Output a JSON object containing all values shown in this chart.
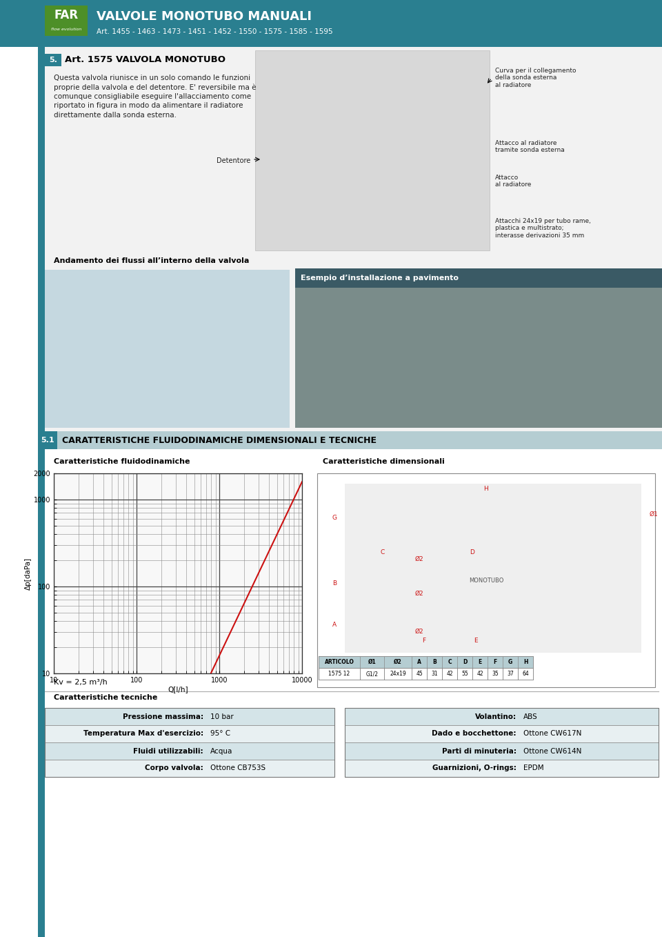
{
  "header_bg": "#2a7f90",
  "header_title": "VALVOLE MONOTUBO MANUALI",
  "header_subtitle": "Art. 1455 - 1463 - 1473 - 1451 - 1452 - 1550 - 1575 - 1585 - 1595",
  "section5_title": "Art. 1575 VALVOLA MONOTUBO",
  "body_text": "Questa valvola riunisce in un solo comando le funzioni\nproprie della valvola e del detentore. E' reversibile ma è\ncomunque consigliabile eseguire l'allacciamento come\nriportato in figura in modo da alimentare il radiatore\ndirettamente dalla sonda esterna.",
  "label_detentore": "Detentore",
  "label_curva": "Curva per il collegamento\ndella sonda esterna\nal radiatore",
  "label_attacco_rad_sonda": "Attacco al radiatore\ntramite sonda esterna",
  "label_attacco_rad": "Attacco\nal radiatore",
  "label_attacchi": "Attacchi 24x19 per tubo rame,\nplastica e multistrato;\ninterasse derivazioni 35 mm",
  "label_andamento": "Andamento dei flussi all’interno della valvola",
  "label_esempio": "Esempio d’installazione a pavimento",
  "section51_title": "CARATTERISTICHE FLUIDODINAMICHE DIMENSIONALI E TECNICHE",
  "chart_title": "Caratteristiche fluidodinamiche",
  "dim_title": "Caratteristiche dimensionali",
  "kv_label": "Kv = 2,5 m³/h",
  "ylabel": "Δp[daPa]",
  "xlabel": "Q[l/h]",
  "table_headers": [
    "ARTICOLO",
    "Ø1",
    "Ø2",
    "A",
    "B",
    "C",
    "D",
    "E",
    "F",
    "G",
    "H"
  ],
  "table_row": [
    "1575 12",
    "G1/2",
    "24x19",
    "45",
    "31",
    "42",
    "55",
    "42",
    "35",
    "37",
    "64"
  ],
  "tech_title": "Caratteristiche tecniche",
  "tech_left": [
    [
      "Pressione massima:",
      "10 bar"
    ],
    [
      "Temperatura Max d'esercizio:",
      "95° C"
    ],
    [
      "Fluidi utilizzabili:",
      "Acqua"
    ],
    [
      "Corpo valvola:",
      "Ottone CB753S"
    ]
  ],
  "tech_right": [
    [
      "Volantino:",
      "ABS"
    ],
    [
      "Dado e bocchettone:",
      "Ottone CW617N"
    ],
    [
      "Parti di minuteria:",
      "Ottone CW614N"
    ],
    [
      "Guarnizioni, O-rings:",
      "EPDM"
    ]
  ],
  "header_bg_color": "#2a7f90",
  "sidebar_color": "#2a7f90",
  "section5_label_bg": "#2a7f90",
  "section51_bg": "#b5cdd2",
  "section51_label_bg": "#2a7f90",
  "flow_img_bg": "#c5d8e0",
  "install_img_bg": "#8a7060",
  "esempio_label_bg": "#3a5a65",
  "tech_row_odd": "#d4e4e8",
  "tech_row_even": "#e8f0f2",
  "table_header_bg": "#b5cdd2",
  "dim_box_bg": "#ffffff",
  "line_color": "#cc1111",
  "grid_major_color": "#555555",
  "grid_minor_color": "#aaaaaa"
}
